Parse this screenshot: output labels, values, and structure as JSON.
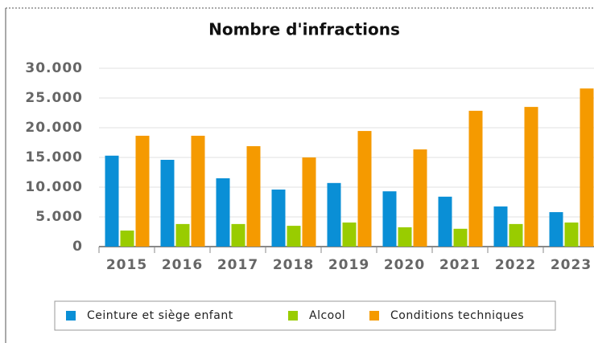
{
  "chart_data": {
    "type": "bar",
    "title": "Nombre d'infractions",
    "categories": [
      "2015",
      "2016",
      "2017",
      "2018",
      "2019",
      "2020",
      "2021",
      "2022",
      "2023"
    ],
    "series": [
      {
        "name": "Ceinture et siège enfant",
        "color": "#0a8fd6",
        "values": [
          15300,
          14600,
          11500,
          9600,
          10700,
          9300,
          8400,
          6750,
          5800
        ]
      },
      {
        "name": "Alcool",
        "color": "#99cc00",
        "values": [
          2700,
          3800,
          3800,
          3500,
          4050,
          3250,
          3000,
          3800,
          4050
        ]
      },
      {
        "name": "Conditions techniques",
        "color": "#f59a00",
        "values": [
          18650,
          18650,
          16900,
          15000,
          19450,
          16350,
          22850,
          23500,
          26600
        ]
      }
    ],
    "ylim": [
      0,
      30000
    ],
    "yticks": [
      0,
      {
        "value": 5000,
        "label": "5.000"
      },
      {
        "value": 10000,
        "label": "10.000"
      },
      {
        "value": 15000,
        "label": "15.000"
      },
      {
        "value": 20000,
        "label": "20.000"
      },
      {
        "value": 25000,
        "label": "25.000"
      },
      {
        "value": 30000,
        "label": "30.000"
      }
    ],
    "grid": true,
    "legend": "bottom"
  }
}
